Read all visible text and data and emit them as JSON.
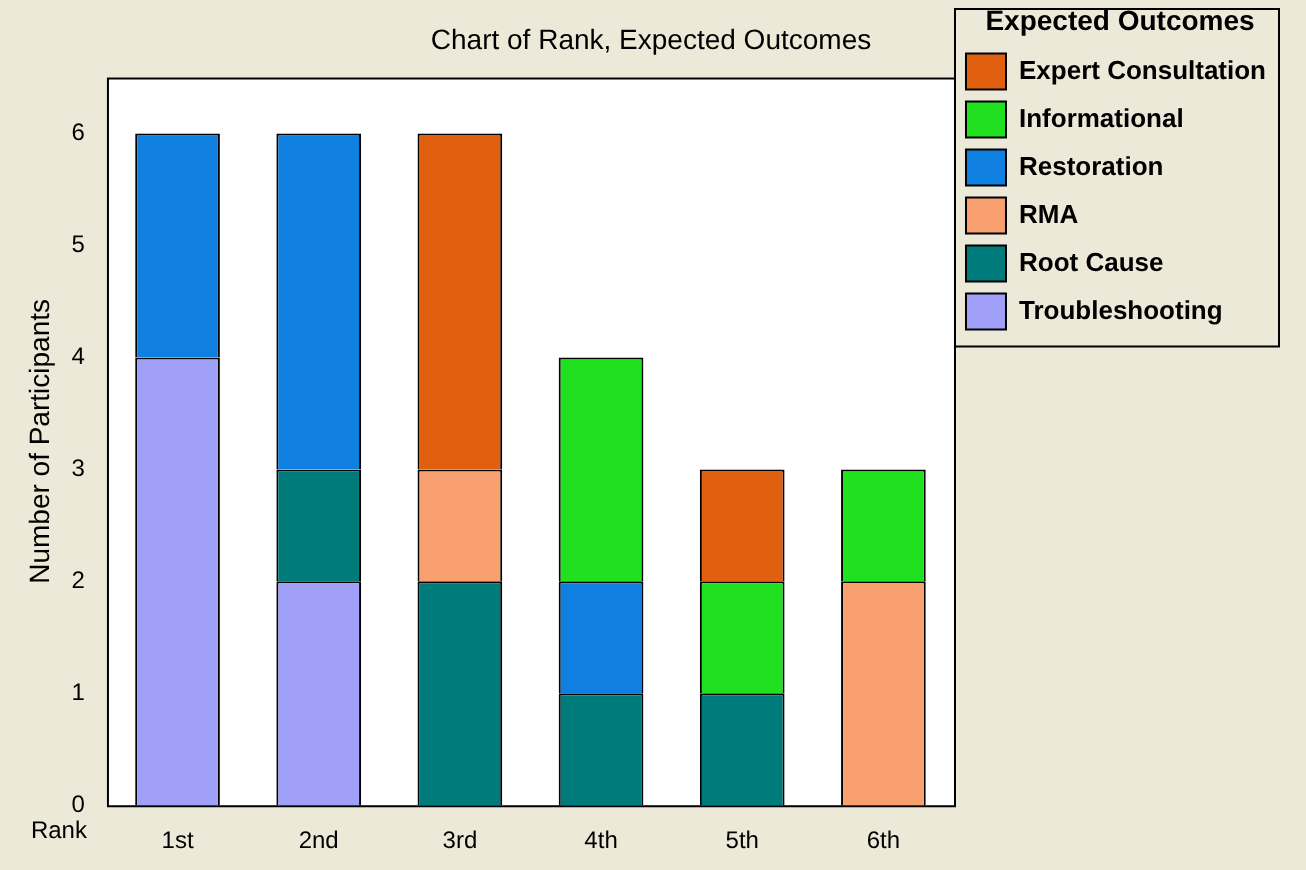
{
  "chart_data": {
    "type": "bar",
    "title": "Chart of Rank, Expected Outcomes",
    "xlabel": "Rank",
    "ylabel": "Number of Participants",
    "legend_title": "Expected Outcomes",
    "categories": [
      "1st",
      "2nd",
      "3rd",
      "4th",
      "5th",
      "6th"
    ],
    "stacked": true,
    "ylim": [
      0,
      6.5
    ],
    "yticks": [
      0,
      1,
      2,
      3,
      4,
      5,
      6
    ],
    "grid": false,
    "legend": "right",
    "series": [
      {
        "name": "Troubleshooting",
        "color": "#a0a0f8",
        "values": [
          4,
          2,
          null,
          null,
          null,
          null
        ]
      },
      {
        "name": "Root Cause",
        "color": "#007b7b",
        "values": [
          null,
          1,
          2,
          1,
          1,
          null
        ]
      },
      {
        "name": "RMA",
        "color": "#f8a070",
        "values": [
          null,
          null,
          1,
          null,
          null,
          2
        ]
      },
      {
        "name": "Restoration",
        "color": "#1080e0",
        "values": [
          2,
          3,
          null,
          1,
          null,
          null
        ]
      },
      {
        "name": "Informational",
        "color": "#20e020",
        "values": [
          null,
          null,
          null,
          2,
          1,
          1
        ]
      },
      {
        "name": "Expert Consultation",
        "color": "#e06010",
        "values": [
          null,
          null,
          3,
          null,
          1,
          null
        ]
      }
    ]
  }
}
